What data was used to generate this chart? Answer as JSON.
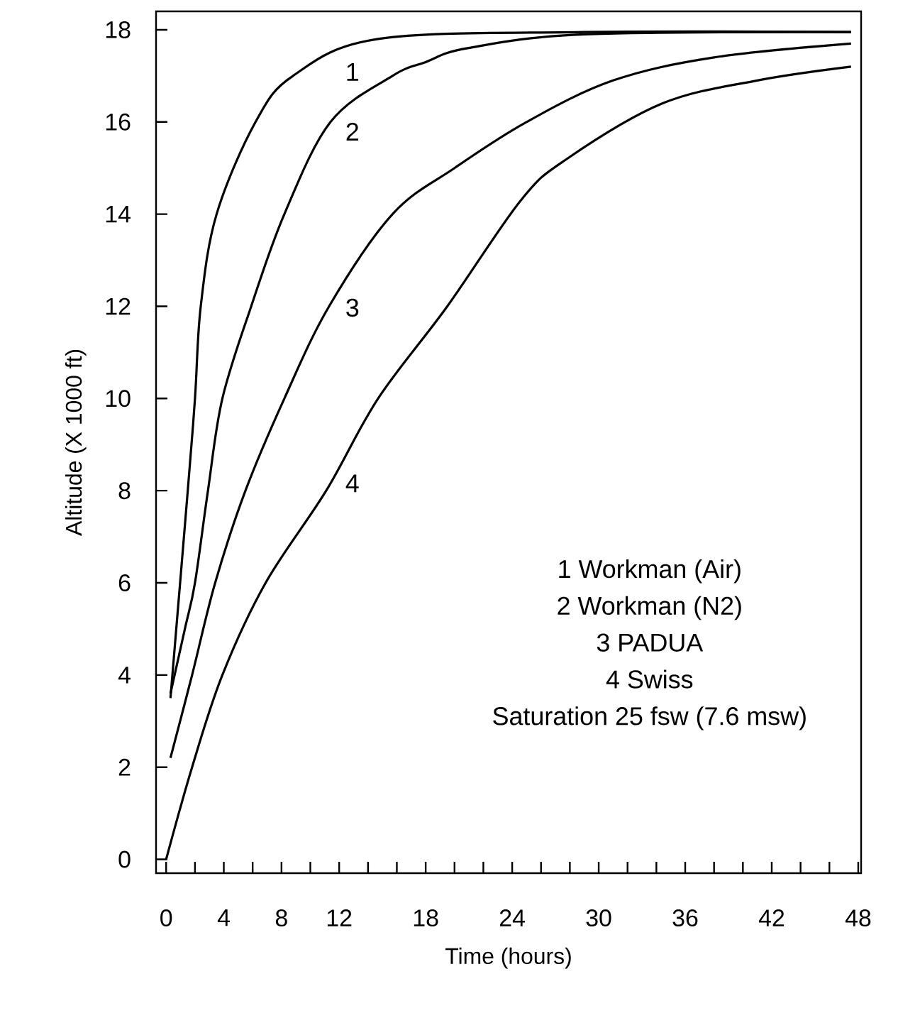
{
  "chart_data": {
    "type": "line",
    "xlabel": "Time (hours)",
    "ylabel": "Altitude (X 1000 ft)",
    "xlim": [
      -0.7,
      48.2
    ],
    "ylim": [
      -0.3,
      18.4
    ],
    "xticks": [
      0,
      {
        "value": 2,
        "label": null
      },
      4,
      {
        "value": 6,
        "label": null
      },
      8,
      {
        "value": 10,
        "label": null
      },
      12,
      {
        "value": 14,
        "label": null
      },
      {
        "value": 16,
        "label": null
      },
      18,
      {
        "value": 20,
        "label": null
      },
      {
        "value": 22,
        "label": null
      },
      24,
      {
        "value": 26,
        "label": null
      },
      {
        "value": 28,
        "label": null
      },
      30,
      {
        "value": 32,
        "label": null
      },
      {
        "value": 34,
        "label": null
      },
      36,
      {
        "value": 38,
        "label": null
      },
      {
        "value": 40,
        "label": null
      },
      42,
      {
        "value": 44,
        "label": null
      },
      {
        "value": 46,
        "label": null
      },
      48
    ],
    "yticks": [
      0,
      2,
      4,
      6,
      8,
      10,
      12,
      14,
      16,
      18
    ],
    "line_style": "solid",
    "series": [
      {
        "name": "1",
        "color": "#000000",
        "x": [
          0.3,
          1.5,
          2.0,
          2.4,
          3.5,
          6.2,
          8.8,
          14.7,
          29,
          47.5
        ],
        "values": [
          3.5,
          8,
          10,
          12,
          14,
          16,
          17,
          17.8,
          17.95,
          17.95
        ]
      },
      {
        "name": "2",
        "color": "#000000",
        "x": [
          0.3,
          1.3,
          2.0,
          2.9,
          3.9,
          5.9,
          8.2,
          11.4,
          15.7,
          18,
          20.9,
          29,
          47.5
        ],
        "values": [
          3.6,
          5,
          6,
          8,
          10,
          12,
          14,
          16,
          17,
          17.3,
          17.6,
          17.9,
          17.95
        ]
      },
      {
        "name": "3",
        "color": "#000000",
        "x": [
          0.3,
          1.8,
          3.4,
          5.5,
          8.2,
          11.3,
          15.7,
          20,
          25,
          31,
          38,
          47.5
        ],
        "values": [
          2.2,
          4,
          6,
          8,
          10,
          12,
          14,
          15,
          16,
          16.9,
          17.4,
          17.7
        ]
      },
      {
        "name": "4",
        "color": "#000000",
        "x": [
          0,
          1.8,
          3.9,
          6.9,
          11.1,
          14.7,
          19.5,
          24.6,
          27.8,
          34.4,
          41,
          47.5
        ],
        "values": [
          0,
          2,
          4,
          6,
          8,
          10,
          12,
          14.3,
          15.2,
          16.4,
          16.9,
          17.2
        ]
      }
    ],
    "annotations": [
      "1 Workman (Air)",
      "2 Workman (N2)",
      "3 PADUA",
      "4 Swiss",
      "Saturation 25 fsw (7.6 msw)"
    ]
  }
}
